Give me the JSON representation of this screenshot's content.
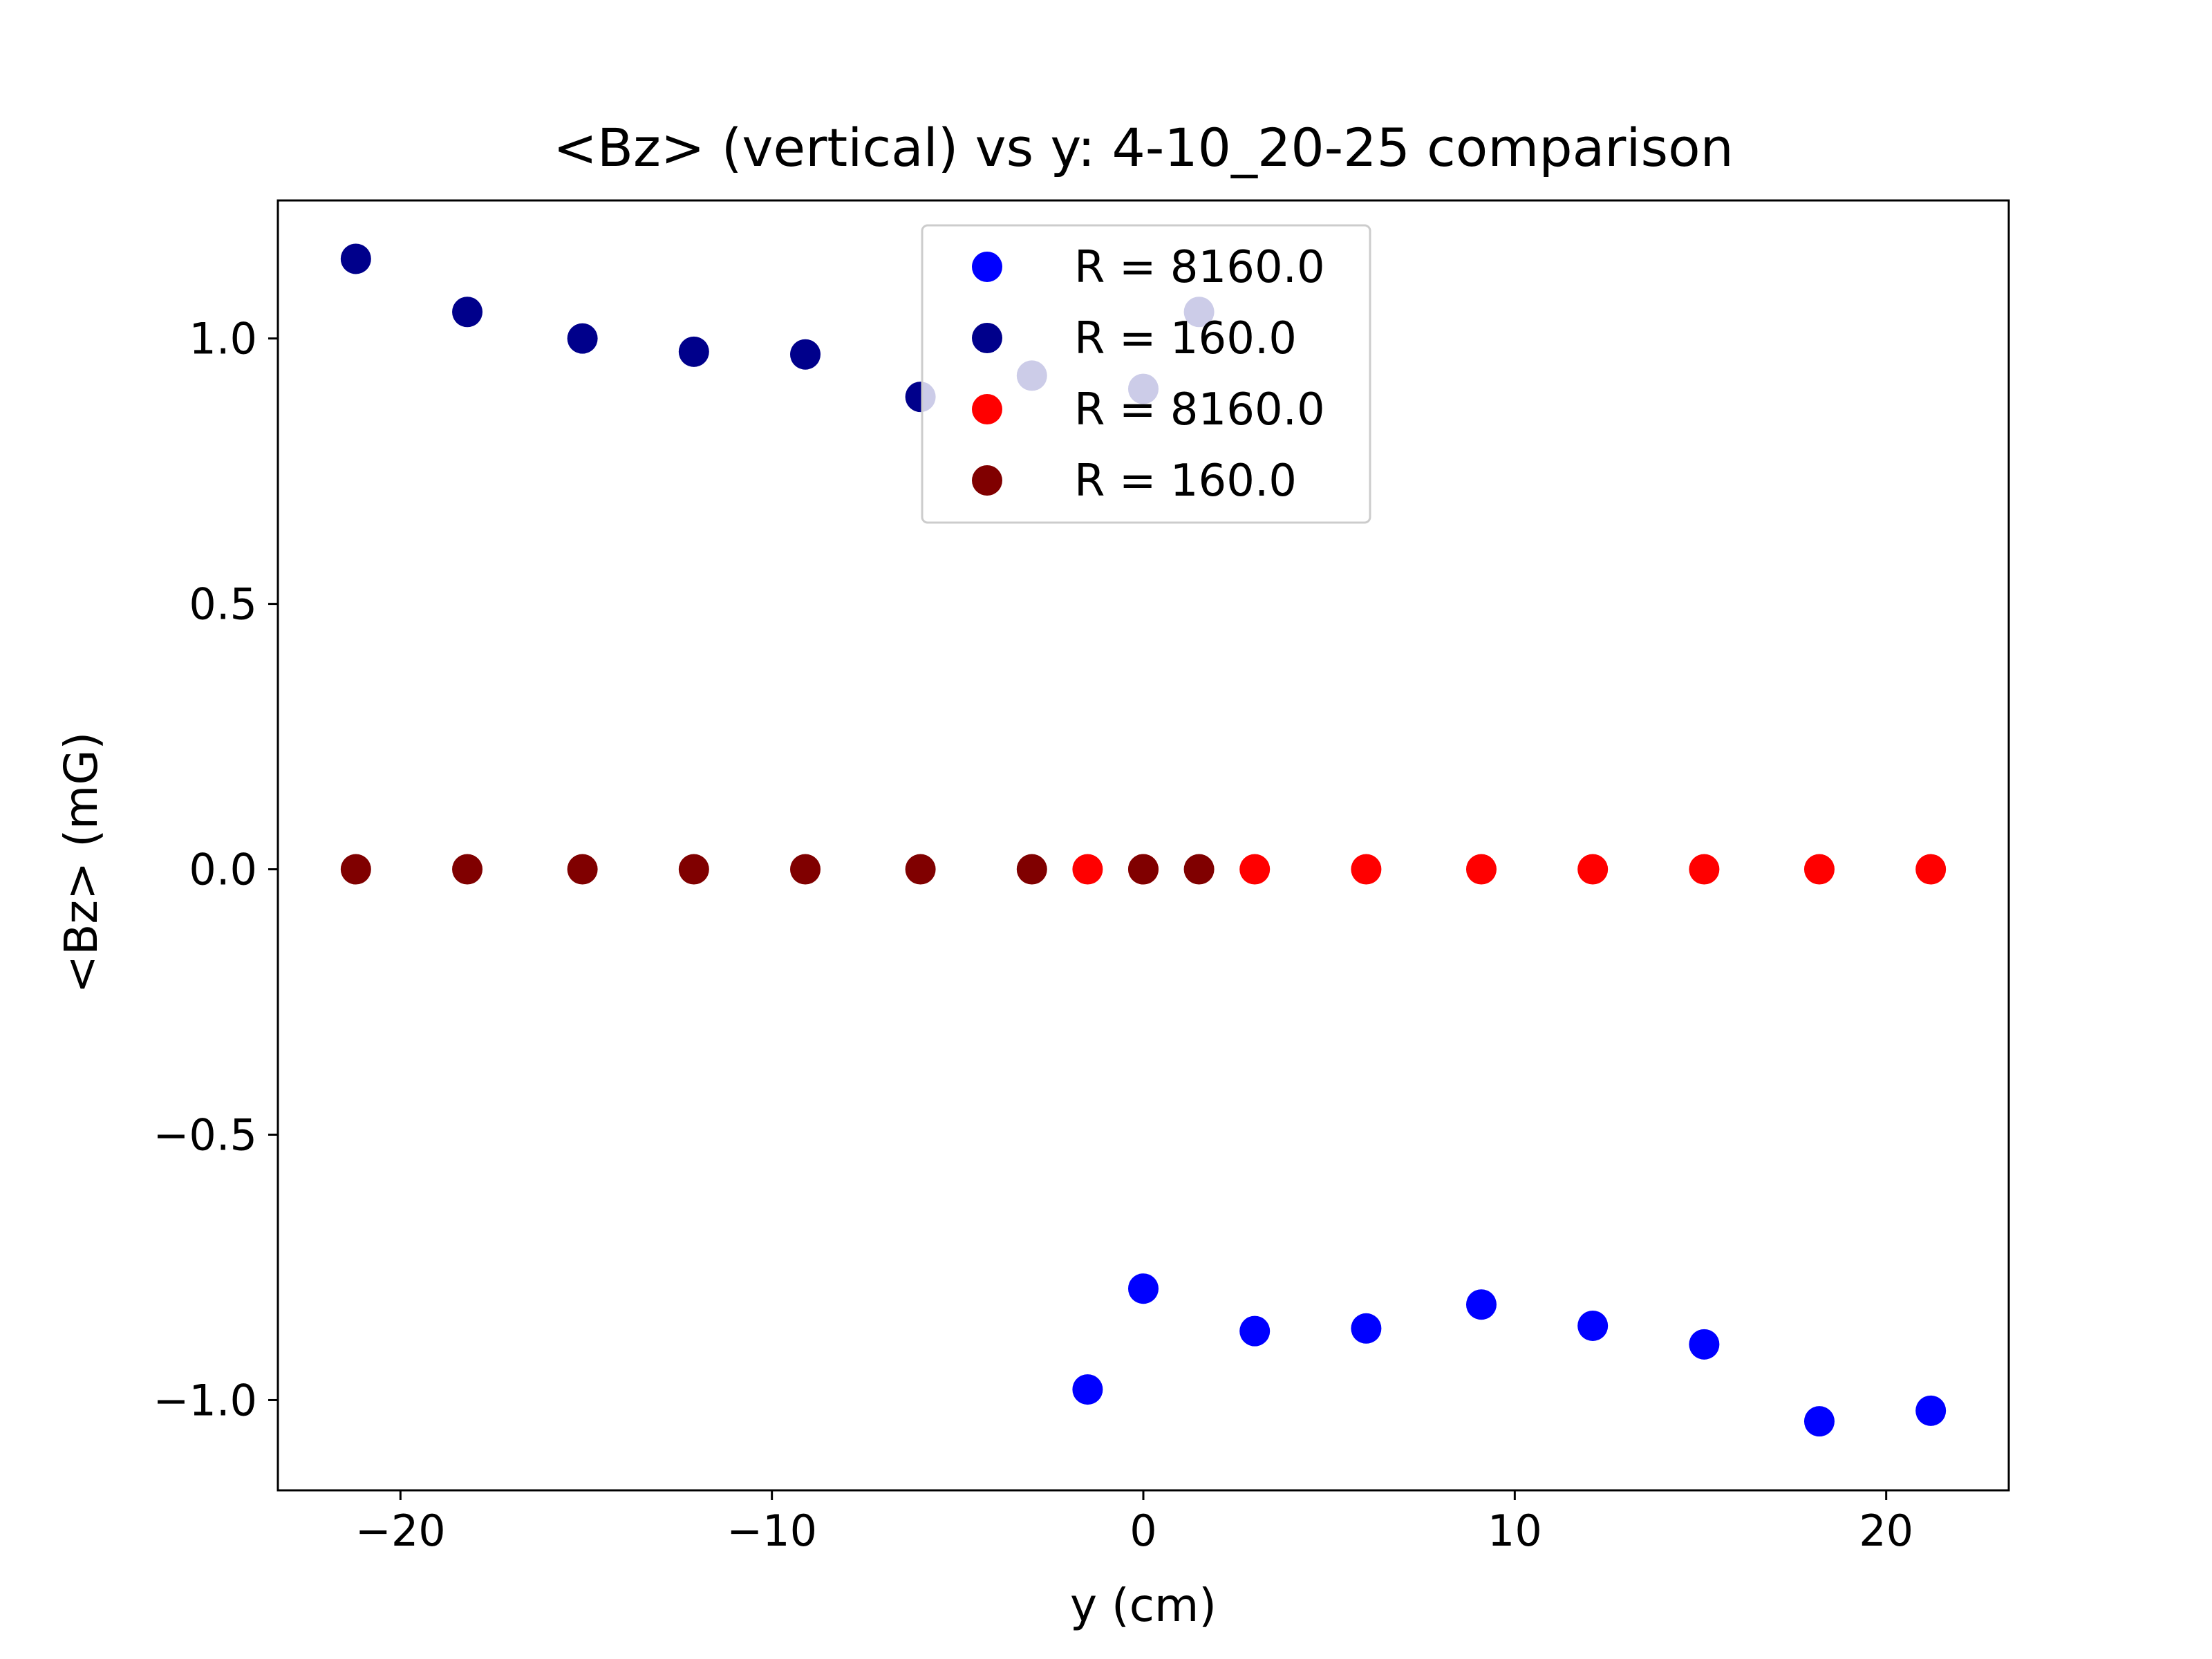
{
  "chart_data": {
    "type": "scatter",
    "title": "<Bz> (vertical) vs y: 4-10_20-25 comparison",
    "xlabel": "y (cm)",
    "ylabel": "<Bz> (mG)",
    "xlim": [
      -23.3,
      23.3
    ],
    "ylim": [
      -1.17,
      1.26
    ],
    "xticks": [
      -20,
      -10,
      0,
      10,
      20
    ],
    "xtick_labels": [
      "−20",
      "−10",
      "0",
      "10",
      "20"
    ],
    "yticks": [
      -1.0,
      -0.5,
      0.0,
      0.5,
      1.0
    ],
    "ytick_labels": [
      "−1.0",
      "−0.5",
      "0.0",
      "0.5",
      "1.0"
    ],
    "grid": false,
    "legend_position": "upper center",
    "series": [
      {
        "name": "R = 8160.0",
        "color": "#0000ff",
        "x": [
          -1.5,
          0.0,
          3.0,
          6.0,
          9.1,
          12.1,
          15.1,
          18.2,
          21.2
        ],
        "y": [
          -0.98,
          -0.79,
          -0.87,
          -0.865,
          -0.82,
          -0.86,
          -0.895,
          -1.04,
          -1.02
        ]
      },
      {
        "name": "R = 160.0",
        "color": "#00008b",
        "x": [
          -21.2,
          -18.2,
          -15.1,
          -12.1,
          -9.1,
          -6.0,
          -3.0,
          0.0,
          1.5
        ],
        "y": [
          1.15,
          1.05,
          1.0,
          0.975,
          0.97,
          0.89,
          0.93,
          0.905,
          1.05
        ]
      },
      {
        "name": "R = 8160.0",
        "color": "#ff0000",
        "x": [
          -1.5,
          0.0,
          3.0,
          6.0,
          9.1,
          12.1,
          15.1,
          18.2,
          21.2
        ],
        "y": [
          0.0,
          0.0,
          0.0,
          0.0,
          0.0,
          0.0,
          0.0,
          0.0,
          0.0
        ]
      },
      {
        "name": "R = 160.0",
        "color": "#800000",
        "x": [
          -21.2,
          -18.2,
          -15.1,
          -12.1,
          -9.1,
          -6.0,
          -3.0,
          0.0,
          1.5
        ],
        "y": [
          0.0,
          0.0,
          0.0,
          0.0,
          0.0,
          0.0,
          0.0,
          0.0,
          0.0
        ]
      }
    ]
  }
}
